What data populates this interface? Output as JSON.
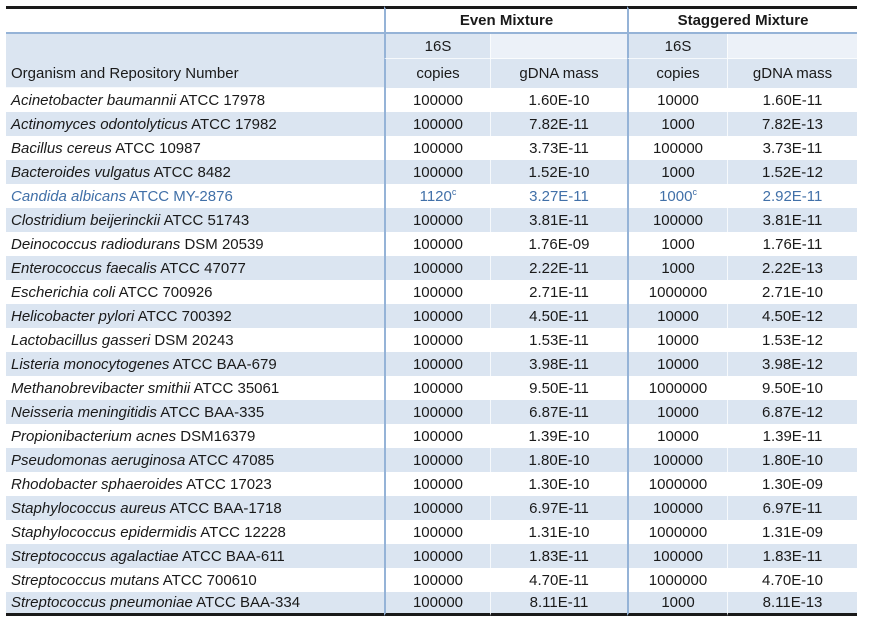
{
  "colors": {
    "stripe_blue": "#DBE5F1",
    "border_blue": "#95B3D7",
    "frame_black": "#1A1A1A",
    "highlight_text_blue": "#4170A8"
  },
  "table": {
    "group_headers": {
      "even": "Even Mixture",
      "staggered": "Staggered Mixture"
    },
    "organism_header": "Organism and Repository Number",
    "sub_headers": {
      "copies_line1": "16S",
      "copies_line2": "copies",
      "gdna": "gDNA mass"
    },
    "rows": [
      {
        "name": "Acinetobacter baumannii",
        "id": "ATCC 17978",
        "even_copies": "100000",
        "even_gdna": "1.60E-10",
        "stag_copies": "10000",
        "stag_gdna": "1.60E-11"
      },
      {
        "name": "Actinomyces odontolyticus",
        "id": "ATCC 17982",
        "even_copies": "100000",
        "even_gdna": "7.82E-11",
        "stag_copies": "1000",
        "stag_gdna": "7.82E-13"
      },
      {
        "name": "Bacillus cereus",
        "id": "ATCC 10987",
        "even_copies": "100000",
        "even_gdna": "3.73E-11",
        "stag_copies": "100000",
        "stag_gdna": "3.73E-11"
      },
      {
        "name": "Bacteroides vulgatus",
        "id": "ATCC 8482",
        "even_copies": "100000",
        "even_gdna": "1.52E-10",
        "stag_copies": "1000",
        "stag_gdna": "1.52E-12"
      },
      {
        "name": "Candida albicans",
        "id": "ATCC MY-2876",
        "even_copies": "1120",
        "even_copies_sup": "c",
        "even_gdna": "3.27E-11",
        "stag_copies": "1000",
        "stag_copies_sup": "c",
        "stag_gdna": "2.92E-11",
        "highlighted": true
      },
      {
        "name": "Clostridium beijerinckii",
        "id": "ATCC 51743",
        "even_copies": "100000",
        "even_gdna": "3.81E-11",
        "stag_copies": "100000",
        "stag_gdna": "3.81E-11"
      },
      {
        "name": "Deinococcus radiodurans",
        "id": "DSM 20539",
        "even_copies": "100000",
        "even_gdna": "1.76E-09",
        "stag_copies": "1000",
        "stag_gdna": "1.76E-11"
      },
      {
        "name": "Enterococcus faecalis",
        "id": "ATCC 47077",
        "even_copies": "100000",
        "even_gdna": "2.22E-11",
        "stag_copies": "1000",
        "stag_gdna": "2.22E-13"
      },
      {
        "name": "Escherichia coli",
        "id": "ATCC 700926",
        "even_copies": "100000",
        "even_gdna": "2.71E-11",
        "stag_copies": "1000000",
        "stag_gdna": "2.71E-10"
      },
      {
        "name": "Helicobacter pylori",
        "id": "ATCC 700392",
        "even_copies": "100000",
        "even_gdna": "4.50E-11",
        "stag_copies": "10000",
        "stag_gdna": "4.50E-12"
      },
      {
        "name": "Lactobacillus gasseri",
        "id": "DSM 20243",
        "even_copies": "100000",
        "even_gdna": "1.53E-11",
        "stag_copies": "10000",
        "stag_gdna": "1.53E-12"
      },
      {
        "name": "Listeria monocytogenes",
        "id": "ATCC BAA-679",
        "even_copies": "100000",
        "even_gdna": "3.98E-11",
        "stag_copies": "10000",
        "stag_gdna": "3.98E-12"
      },
      {
        "name": "Methanobrevibacter smithii",
        "id": "ATCC 35061",
        "even_copies": "100000",
        "even_gdna": "9.50E-11",
        "stag_copies": "1000000",
        "stag_gdna": "9.50E-10"
      },
      {
        "name": "Neisseria meningitidis",
        "id": "ATCC BAA-335",
        "even_copies": "100000",
        "even_gdna": "6.87E-11",
        "stag_copies": "10000",
        "stag_gdna": "6.87E-12"
      },
      {
        "name": "Propionibacterium acnes",
        "id": "DSM16379",
        "even_copies": "100000",
        "even_gdna": "1.39E-10",
        "stag_copies": "10000",
        "stag_gdna": "1.39E-11"
      },
      {
        "name": "Pseudomonas aeruginosa",
        "id": "ATCC 47085",
        "even_copies": "100000",
        "even_gdna": "1.80E-10",
        "stag_copies": "100000",
        "stag_gdna": "1.80E-10"
      },
      {
        "name": "Rhodobacter sphaeroides",
        "id": "ATCC 17023",
        "even_copies": "100000",
        "even_gdna": "1.30E-10",
        "stag_copies": "1000000",
        "stag_gdna": "1.30E-09"
      },
      {
        "name": "Staphylococcus aureus",
        "id": "ATCC BAA-1718",
        "even_copies": "100000",
        "even_gdna": "6.97E-11",
        "stag_copies": "100000",
        "stag_gdna": "6.97E-11"
      },
      {
        "name": "Staphylococcus epidermidis",
        "id": "ATCC 12228",
        "even_copies": "100000",
        "even_gdna": "1.31E-10",
        "stag_copies": "1000000",
        "stag_gdna": "1.31E-09"
      },
      {
        "name": "Streptococcus agalactiae",
        "id": "ATCC BAA-611",
        "even_copies": "100000",
        "even_gdna": "1.83E-11",
        "stag_copies": "100000",
        "stag_gdna": "1.83E-11"
      },
      {
        "name": "Streptococcus mutans",
        "id": "ATCC 700610",
        "even_copies": "100000",
        "even_gdna": "4.70E-11",
        "stag_copies": "1000000",
        "stag_gdna": "4.70E-10"
      },
      {
        "name": "Streptococcus pneumoniae",
        "id": "ATCC BAA-334",
        "even_copies": "100000",
        "even_gdna": "8.11E-11",
        "stag_copies": "1000",
        "stag_gdna": "8.11E-13"
      }
    ]
  }
}
